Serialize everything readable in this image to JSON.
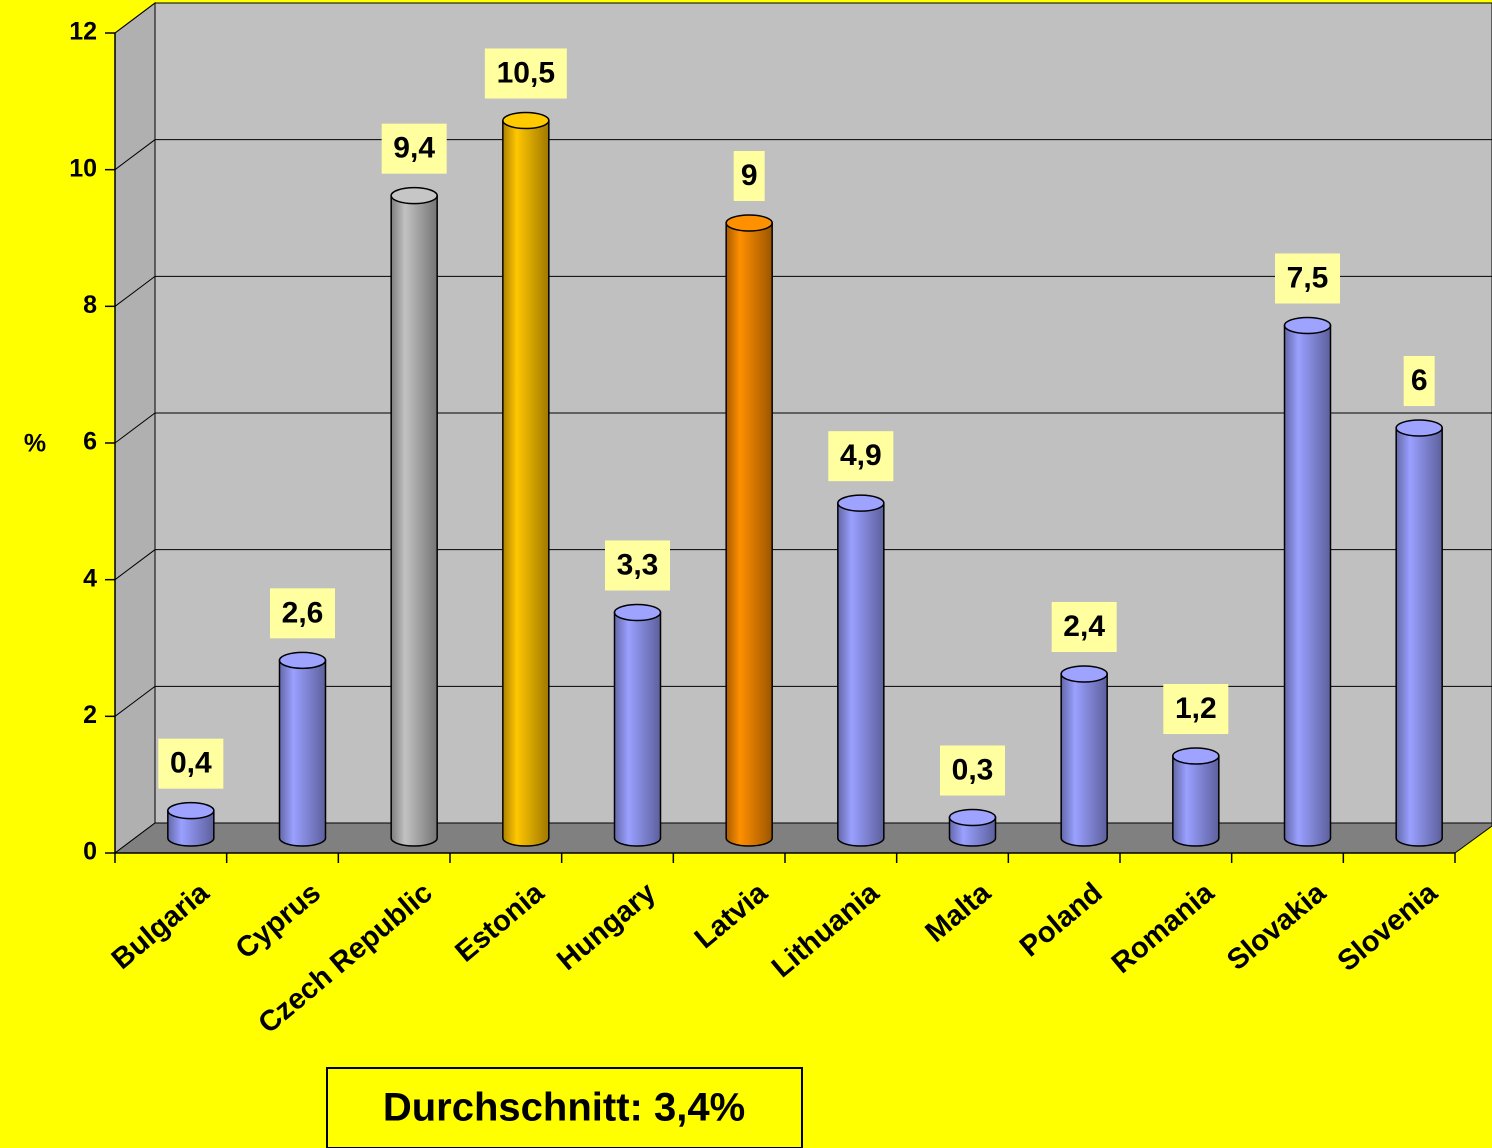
{
  "chart_data": {
    "type": "bar",
    "y_label": "%",
    "categories": [
      "Bulgaria",
      "Cyprus",
      "Czech Republic",
      "Estonia",
      "Hungary",
      "Latvia",
      "Lithuania",
      "Malta",
      "Poland",
      "Romania",
      "Slovakia",
      "Slovenia"
    ],
    "values": [
      0.4,
      2.6,
      9.4,
      10.5,
      3.3,
      9,
      4.9,
      0.3,
      2.4,
      1.2,
      7.5,
      6
    ],
    "value_labels": [
      "0,4",
      "2,6",
      "9,4",
      "10,5",
      "3,3",
      "9",
      "4,9",
      "0,3",
      "2,4",
      "1,2",
      "7,5",
      "6"
    ],
    "colors": [
      "#8f94f0",
      "#8f94f0",
      "#b4b4b4",
      "#f4b800",
      "#8f94f0",
      "#f08400",
      "#8f94f0",
      "#8f94f0",
      "#8f94f0",
      "#8f94f0",
      "#8f94f0",
      "#8f94f0"
    ],
    "ylim": [
      0,
      12
    ],
    "yticks": [
      0,
      2,
      4,
      6,
      8,
      10,
      12
    ],
    "grid": true,
    "annotation": "Durchschnitt: 3,4%"
  }
}
